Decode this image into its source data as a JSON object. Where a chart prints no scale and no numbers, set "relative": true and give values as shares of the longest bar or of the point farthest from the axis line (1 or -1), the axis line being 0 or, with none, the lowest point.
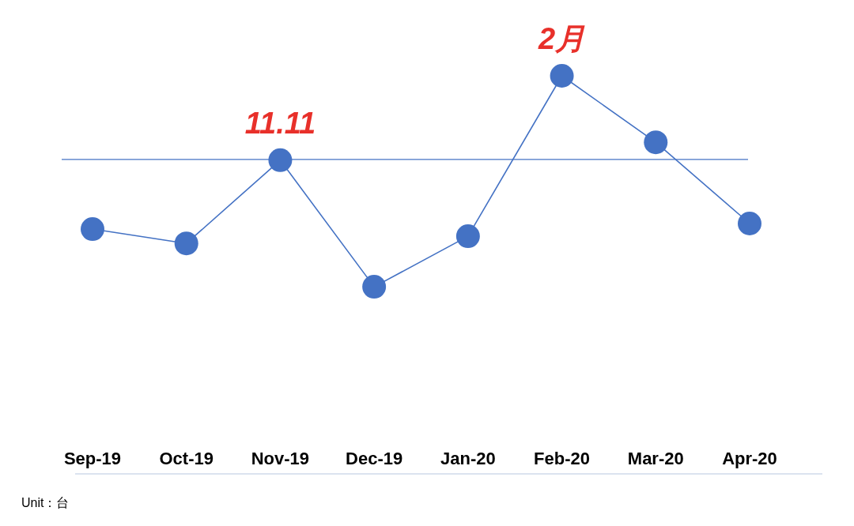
{
  "chart_data": {
    "type": "line",
    "relative": true,
    "marker": "circle",
    "categories": [
      "Sep-19",
      "Oct-19",
      "Nov-19",
      "Dec-19",
      "Jan-20",
      "Feb-20",
      "Mar-20",
      "Apr-20"
    ],
    "series": [
      {
        "color": "#4472c4",
        "values": [
          0.615,
          0.579,
          0.788,
          0.47,
          0.597,
          1,
          0.833,
          0.629
        ]
      }
    ],
    "ref_lines": [
      {
        "axis": "y",
        "value": 0.79,
        "color": "#4472c4"
      }
    ],
    "annotations": [
      {
        "text": "11.11",
        "x": "Nov-19",
        "y": 0.788
      },
      {
        "text": "2月",
        "x": "Feb-20",
        "y": 1
      },
      "Unit：台"
    ]
  }
}
